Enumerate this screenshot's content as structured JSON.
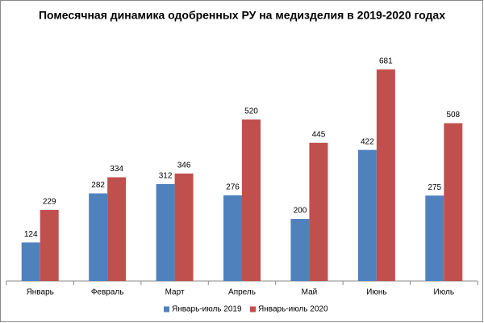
{
  "chart_data": {
    "type": "bar",
    "title": "Помесячная динамика одобренных РУ на медизделия в 2019-2020 годах",
    "categories": [
      "Январь",
      "Февраль",
      "Март",
      "Апрель",
      "Май",
      "Июнь",
      "Июль"
    ],
    "series": [
      {
        "name": "Январь-июль 2019",
        "color": "#4f81bd",
        "values": [
          124,
          282,
          312,
          276,
          200,
          422,
          275
        ]
      },
      {
        "name": "Январь-июль 2020",
        "color": "#c0504d",
        "values": [
          229,
          334,
          346,
          520,
          445,
          681,
          508
        ]
      }
    ],
    "legend": "bottom"
  }
}
